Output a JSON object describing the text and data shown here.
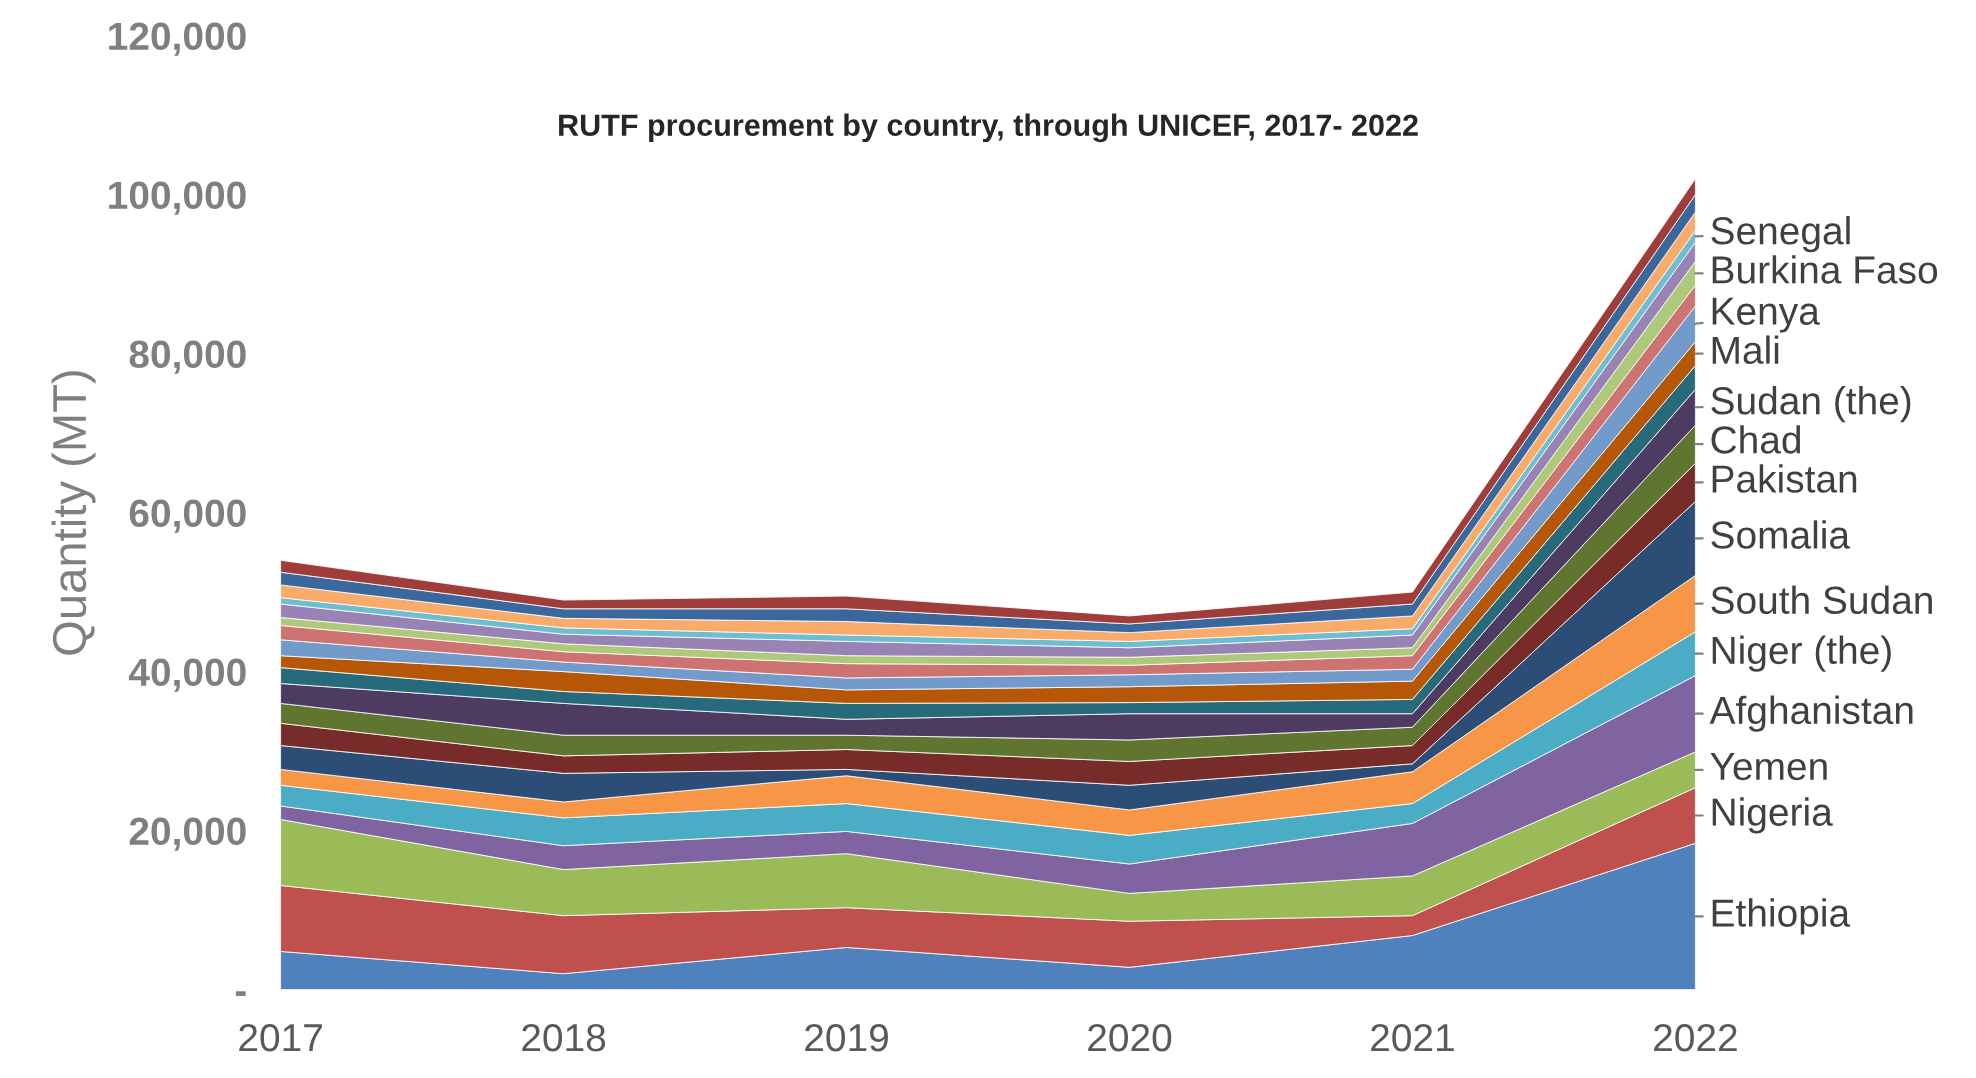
{
  "chart_data": {
    "type": "area",
    "stacked": true,
    "title": "RUTF procurement by country, through UNICEF, 2017- 2022",
    "ylabel": "Quantity (MT)",
    "x": [
      2017,
      2018,
      2019,
      2020,
      2021,
      2022
    ],
    "xlim": [
      2017,
      2022
    ],
    "xticks": [
      2017,
      2018,
      2019,
      2020,
      2021,
      2022
    ],
    "ylim": [
      0,
      120000
    ],
    "yticks": [
      {
        "value": 0,
        "label": "-"
      },
      {
        "value": 20000,
        "label": "20,000"
      },
      {
        "value": 40000,
        "label": "40,000"
      },
      {
        "value": 60000,
        "label": "60,000"
      },
      {
        "value": 80000,
        "label": "80,000"
      },
      {
        "value": 100000,
        "label": "100,000"
      },
      {
        "value": 120000,
        "label": "120,000"
      }
    ],
    "grid": false,
    "legend": false,
    "series": [
      {
        "name": "Ethiopia",
        "color": "#4f81bd",
        "values": [
          4800,
          2000,
          5300,
          2800,
          6800,
          18400
        ]
      },
      {
        "name": "Nigeria",
        "color": "#c0504d",
        "values": [
          8300,
          7300,
          5000,
          5800,
          2500,
          7000
        ]
      },
      {
        "name": "Yemen",
        "color": "#9bbb59",
        "values": [
          8300,
          5800,
          6800,
          3500,
          5000,
          4500
        ]
      },
      {
        "name": "Afghanistan",
        "color": "#8064a2",
        "values": [
          1700,
          3000,
          2800,
          3700,
          6600,
          9600
        ]
      },
      {
        "name": "Niger (the)",
        "color": "#4bacc6",
        "values": [
          2600,
          3500,
          3500,
          3600,
          2500,
          5500
        ]
      },
      {
        "name": "South Sudan",
        "color": "#f79646",
        "values": [
          2000,
          2000,
          3500,
          3200,
          4000,
          7100
        ]
      },
      {
        "name": "Somalia",
        "color": "#2c4d75",
        "values": [
          3000,
          3600,
          800,
          3100,
          1000,
          9300
        ]
      },
      {
        "name": "Pakistan",
        "color": "#772c2a",
        "values": [
          2800,
          2200,
          2500,
          3000,
          2300,
          4800
        ]
      },
      {
        "name": "Chad",
        "color": "#5f7530",
        "values": [
          2500,
          2600,
          1800,
          2700,
          2300,
          4800
        ]
      },
      {
        "name": "Sudan (the)",
        "color": "#4d3b62",
        "values": [
          2500,
          4000,
          2000,
          3300,
          1700,
          4500
        ]
      },
      {
        "color": "#276a7c",
        "values": [
          2000,
          1500,
          2000,
          1400,
          1800,
          3000
        ]
      },
      {
        "name": "Mali",
        "color": "#b65708",
        "values": [
          1500,
          2500,
          1700,
          2000,
          2300,
          3000
        ]
      },
      {
        "name": "Kenya",
        "color": "#729aca",
        "values": [
          2000,
          1200,
          1500,
          1500,
          1500,
          4500
        ]
      },
      {
        "color": "#cd7371",
        "values": [
          1800,
          1300,
          1800,
          1200,
          1700,
          2600
        ]
      },
      {
        "name": "Burkina Faso",
        "color": "#afc97a",
        "values": [
          1000,
          1000,
          1000,
          1000,
          1000,
          3000
        ]
      },
      {
        "color": "#9983b5",
        "values": [
          1700,
          1200,
          1800,
          1200,
          1600,
          2400
        ]
      },
      {
        "name": "Senegal",
        "color": "#6fbdd1",
        "values": [
          800,
          800,
          800,
          800,
          800,
          1500
        ]
      },
      {
        "color": "#f9ab6b",
        "values": [
          1600,
          1200,
          1700,
          1100,
          1600,
          2300
        ]
      },
      {
        "color": "#3a679c",
        "values": [
          1600,
          1200,
          1600,
          1100,
          1500,
          2200
        ]
      },
      {
        "color": "#9e3d3a",
        "values": [
          1500,
          1100,
          1600,
          1000,
          1500,
          2000
        ]
      }
    ]
  }
}
